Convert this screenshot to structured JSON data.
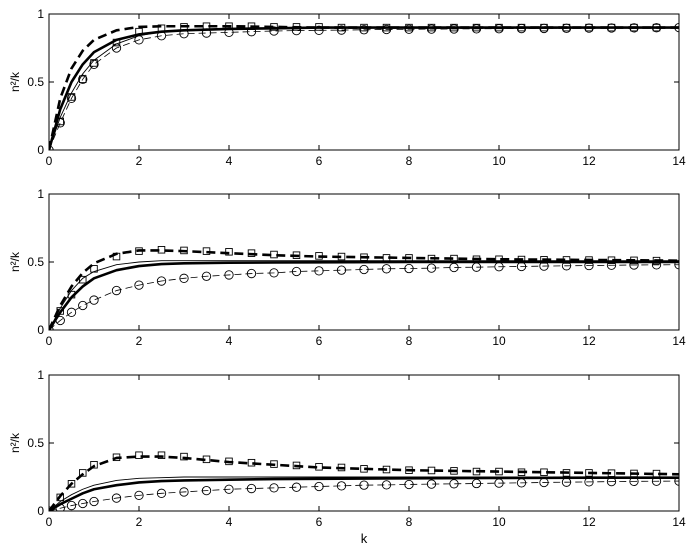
{
  "chart_data": [
    {
      "type": "line",
      "xlabel": "",
      "ylabel": "n²/k",
      "xlim": [
        0,
        14
      ],
      "ylim": [
        0,
        1
      ],
      "xticks": [
        "0",
        "2",
        "4",
        "6",
        "8",
        "10",
        "12",
        "14"
      ],
      "yticks": [
        "0",
        "0.5",
        "1"
      ],
      "grid": false,
      "series": [
        {
          "style": "thick-solid",
          "x": [
            0,
            0.25,
            0.5,
            0.75,
            1,
            1.5,
            2,
            2.5,
            3,
            4,
            5,
            6,
            8,
            10,
            12,
            14
          ],
          "y": [
            0,
            0.3,
            0.5,
            0.63,
            0.72,
            0.81,
            0.85,
            0.87,
            0.88,
            0.89,
            0.895,
            0.9,
            0.9,
            0.9,
            0.9,
            0.9
          ]
        },
        {
          "style": "thick-dashed",
          "x": [
            0,
            0.25,
            0.5,
            0.75,
            1,
            1.5,
            2,
            2.5,
            3,
            4,
            5,
            6,
            8,
            10,
            12,
            14
          ],
          "y": [
            0,
            0.38,
            0.6,
            0.73,
            0.81,
            0.88,
            0.905,
            0.91,
            0.91,
            0.91,
            0.905,
            0.9,
            0.9,
            0.9,
            0.9,
            0.9
          ]
        },
        {
          "style": "thin-solid",
          "x": [
            0,
            0.25,
            0.5,
            0.75,
            1,
            1.5,
            2,
            2.5,
            3,
            4,
            5,
            6,
            8,
            10,
            12,
            14
          ],
          "y": [
            0,
            0.24,
            0.42,
            0.56,
            0.66,
            0.78,
            0.84,
            0.87,
            0.88,
            0.89,
            0.895,
            0.9,
            0.9,
            0.9,
            0.9,
            0.9
          ]
        },
        {
          "style": "thin-dashed-circles",
          "x": [
            0,
            0.25,
            0.5,
            0.75,
            1,
            1.5,
            2,
            2.5,
            3,
            3.5,
            4,
            4.5,
            5,
            5.5,
            6,
            6.5,
            7,
            7.5,
            8,
            8.5,
            9,
            9.5,
            10,
            10.5,
            11,
            11.5,
            12,
            12.5,
            13,
            13.5,
            14
          ],
          "y": [
            0,
            0.2,
            0.38,
            0.52,
            0.63,
            0.75,
            0.81,
            0.84,
            0.855,
            0.86,
            0.865,
            0.87,
            0.875,
            0.878,
            0.88,
            0.882,
            0.884,
            0.886,
            0.888,
            0.889,
            0.89,
            0.891,
            0.892,
            0.893,
            0.894,
            0.895,
            0.896,
            0.897,
            0.898,
            0.899,
            0.9
          ]
        },
        {
          "style": "squares",
          "x": [
            0.25,
            0.5,
            0.75,
            1,
            1.5,
            2,
            2.5,
            3,
            3.5,
            4,
            4.5,
            5,
            5.5,
            6,
            6.5,
            7,
            7.5,
            8,
            8.5,
            9,
            9.5,
            10,
            10.5,
            11,
            11.5,
            12,
            12.5,
            13,
            13.5
          ],
          "y": [
            0.21,
            0.39,
            0.52,
            0.64,
            0.79,
            0.87,
            0.895,
            0.905,
            0.91,
            0.91,
            0.91,
            0.905,
            0.905,
            0.905,
            0.9,
            0.9,
            0.9,
            0.9,
            0.9,
            0.9,
            0.9,
            0.9,
            0.9,
            0.9,
            0.9,
            0.9,
            0.9,
            0.9,
            0.9
          ]
        }
      ]
    },
    {
      "type": "line",
      "xlabel": "",
      "ylabel": "n²/k",
      "xlim": [
        0,
        14
      ],
      "ylim": [
        0,
        1
      ],
      "xticks": [
        "0",
        "2",
        "4",
        "6",
        "8",
        "10",
        "12",
        "14"
      ],
      "yticks": [
        "0",
        "0.5",
        "1"
      ],
      "grid": false,
      "series": [
        {
          "style": "thick-solid",
          "x": [
            0,
            0.25,
            0.5,
            0.75,
            1,
            1.5,
            2,
            2.5,
            3,
            4,
            5,
            6,
            8,
            10,
            12,
            14
          ],
          "y": [
            0,
            0.13,
            0.24,
            0.32,
            0.38,
            0.44,
            0.47,
            0.485,
            0.49,
            0.495,
            0.497,
            0.498,
            0.5,
            0.5,
            0.5,
            0.5
          ]
        },
        {
          "style": "thick-dashed",
          "x": [
            0,
            0.25,
            0.5,
            0.75,
            1,
            1.5,
            2,
            2.5,
            3,
            4,
            5,
            6,
            8,
            10,
            12,
            14
          ],
          "y": [
            0,
            0.18,
            0.32,
            0.42,
            0.49,
            0.56,
            0.585,
            0.585,
            0.58,
            0.565,
            0.55,
            0.54,
            0.53,
            0.52,
            0.515,
            0.51
          ]
        },
        {
          "style": "thin-solid",
          "x": [
            0,
            0.25,
            0.5,
            0.75,
            1,
            1.5,
            2,
            2.5,
            3,
            4,
            5,
            6,
            8,
            10,
            12,
            14
          ],
          "y": [
            0,
            0.16,
            0.29,
            0.38,
            0.43,
            0.48,
            0.5,
            0.51,
            0.51,
            0.51,
            0.51,
            0.51,
            0.51,
            0.51,
            0.51,
            0.51
          ]
        },
        {
          "style": "thin-dashed-circles",
          "x": [
            0,
            0.25,
            0.5,
            0.75,
            1,
            1.5,
            2,
            2.5,
            3,
            3.5,
            4,
            4.5,
            5,
            5.5,
            6,
            6.5,
            7,
            7.5,
            8,
            8.5,
            9,
            9.5,
            10,
            10.5,
            11,
            11.5,
            12,
            12.5,
            13,
            13.5,
            14
          ],
          "y": [
            0,
            0.07,
            0.13,
            0.18,
            0.22,
            0.29,
            0.33,
            0.36,
            0.38,
            0.395,
            0.405,
            0.415,
            0.42,
            0.43,
            0.435,
            0.44,
            0.445,
            0.45,
            0.452,
            0.455,
            0.46,
            0.462,
            0.465,
            0.467,
            0.47,
            0.472,
            0.474,
            0.476,
            0.478,
            0.479,
            0.48
          ]
        },
        {
          "style": "squares",
          "x": [
            0.25,
            0.5,
            0.75,
            1,
            1.5,
            2,
            2.5,
            3,
            3.5,
            4,
            4.5,
            5,
            5.5,
            6,
            6.5,
            7,
            7.5,
            8,
            8.5,
            9,
            9.5,
            10,
            10.5,
            11,
            11.5,
            12,
            12.5,
            13,
            13.5
          ],
          "y": [
            0.14,
            0.26,
            0.37,
            0.45,
            0.54,
            0.58,
            0.59,
            0.585,
            0.58,
            0.575,
            0.565,
            0.555,
            0.55,
            0.545,
            0.54,
            0.535,
            0.53,
            0.53,
            0.525,
            0.525,
            0.52,
            0.52,
            0.518,
            0.516,
            0.515,
            0.514,
            0.513,
            0.512,
            0.51
          ]
        }
      ]
    },
    {
      "type": "line",
      "xlabel": "k",
      "ylabel": "n²/k",
      "xlim": [
        0,
        14
      ],
      "ylim": [
        0,
        1
      ],
      "xticks": [
        "0",
        "2",
        "4",
        "6",
        "8",
        "10",
        "12",
        "14"
      ],
      "yticks": [
        "0",
        "0.5",
        "1"
      ],
      "grid": false,
      "series": [
        {
          "style": "thick-solid",
          "x": [
            0,
            0.25,
            0.5,
            0.75,
            1,
            1.5,
            2,
            2.5,
            3,
            4,
            5,
            6,
            8,
            10,
            12,
            14
          ],
          "y": [
            0,
            0.05,
            0.09,
            0.13,
            0.16,
            0.19,
            0.21,
            0.22,
            0.225,
            0.23,
            0.235,
            0.237,
            0.24,
            0.243,
            0.245,
            0.245
          ]
        },
        {
          "style": "thick-dashed",
          "x": [
            0,
            0.25,
            0.5,
            0.75,
            1,
            1.5,
            2,
            2.5,
            3,
            4,
            5,
            6,
            8,
            10,
            12,
            14
          ],
          "y": [
            0,
            0.11,
            0.2,
            0.27,
            0.33,
            0.39,
            0.4,
            0.4,
            0.39,
            0.36,
            0.34,
            0.32,
            0.3,
            0.29,
            0.28,
            0.27
          ]
        },
        {
          "style": "thin-solid",
          "x": [
            0,
            0.25,
            0.5,
            0.75,
            1,
            1.5,
            2,
            2.5,
            3,
            4,
            5,
            6,
            8,
            10,
            12,
            14
          ],
          "y": [
            0,
            0.07,
            0.12,
            0.16,
            0.19,
            0.225,
            0.24,
            0.245,
            0.25,
            0.25,
            0.25,
            0.25,
            0.25,
            0.25,
            0.25,
            0.25
          ]
        },
        {
          "style": "thin-dashed-circles",
          "x": [
            0,
            0.25,
            0.5,
            0.75,
            1,
            1.5,
            2,
            2.5,
            3,
            3.5,
            4,
            4.5,
            5,
            5.5,
            6,
            6.5,
            7,
            7.5,
            8,
            8.5,
            9,
            9.5,
            10,
            10.5,
            11,
            11.5,
            12,
            12.5,
            13,
            13.5,
            14
          ],
          "y": [
            0,
            0.02,
            0.04,
            0.055,
            0.07,
            0.095,
            0.115,
            0.13,
            0.14,
            0.15,
            0.16,
            0.165,
            0.17,
            0.175,
            0.18,
            0.185,
            0.19,
            0.192,
            0.195,
            0.198,
            0.2,
            0.202,
            0.205,
            0.207,
            0.21,
            0.212,
            0.214,
            0.216,
            0.218,
            0.219,
            0.22
          ]
        },
        {
          "style": "squares",
          "x": [
            0.25,
            0.5,
            0.75,
            1,
            1.5,
            2,
            2.5,
            3,
            3.5,
            4,
            4.5,
            5,
            5.5,
            6,
            6.5,
            7,
            7.5,
            8,
            8.5,
            9,
            9.5,
            10,
            10.5,
            11,
            11.5,
            12,
            12.5,
            13,
            13.5
          ],
          "y": [
            0.1,
            0.2,
            0.28,
            0.34,
            0.395,
            0.41,
            0.41,
            0.4,
            0.38,
            0.365,
            0.355,
            0.345,
            0.335,
            0.325,
            0.32,
            0.31,
            0.305,
            0.3,
            0.298,
            0.295,
            0.29,
            0.29,
            0.285,
            0.285,
            0.28,
            0.28,
            0.278,
            0.276,
            0.275
          ]
        }
      ]
    }
  ]
}
